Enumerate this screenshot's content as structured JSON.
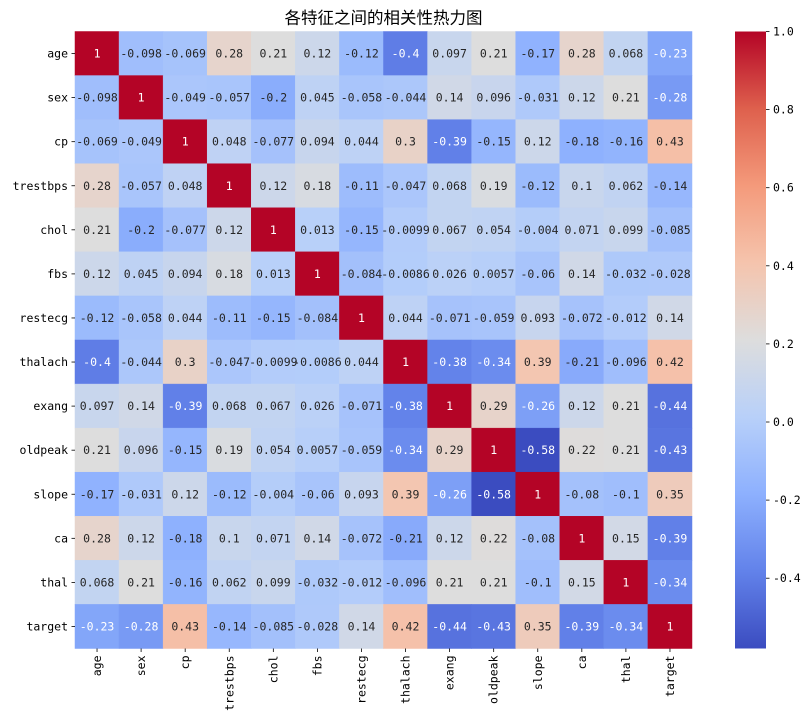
{
  "chart_data": {
    "type": "heatmap",
    "title": "各特征之间的相关性热力图",
    "row_labels": [
      "age",
      "sex",
      "cp",
      "trestbps",
      "chol",
      "fbs",
      "restecg",
      "thalach",
      "exang",
      "oldpeak",
      "slope",
      "ca",
      "thal",
      "target"
    ],
    "col_labels": [
      "age",
      "sex",
      "cp",
      "trestbps",
      "chol",
      "fbs",
      "restecg",
      "thalach",
      "exang",
      "oldpeak",
      "slope",
      "ca",
      "thal",
      "target"
    ],
    "matrix": [
      [
        1,
        -0.098,
        -0.069,
        0.28,
        0.21,
        0.12,
        -0.12,
        -0.4,
        0.097,
        0.21,
        -0.17,
        0.28,
        0.068,
        -0.23
      ],
      [
        -0.098,
        1,
        -0.049,
        -0.057,
        -0.2,
        0.045,
        -0.058,
        -0.044,
        0.14,
        0.096,
        -0.031,
        0.12,
        0.21,
        -0.28
      ],
      [
        -0.069,
        -0.049,
        1,
        0.048,
        -0.077,
        0.094,
        0.044,
        0.3,
        -0.39,
        -0.15,
        0.12,
        -0.18,
        -0.16,
        0.43
      ],
      [
        0.28,
        -0.057,
        0.048,
        1,
        0.12,
        0.18,
        -0.11,
        -0.047,
        0.068,
        0.19,
        -0.12,
        0.1,
        0.062,
        -0.14
      ],
      [
        0.21,
        -0.2,
        -0.077,
        0.12,
        1,
        0.013,
        -0.15,
        -0.0099,
        0.067,
        0.054,
        -0.004,
        0.071,
        0.099,
        -0.085
      ],
      [
        0.12,
        0.045,
        0.094,
        0.18,
        0.013,
        1,
        -0.084,
        -0.0086,
        0.026,
        0.0057,
        -0.06,
        0.14,
        -0.032,
        -0.028
      ],
      [
        -0.12,
        -0.058,
        0.044,
        -0.11,
        -0.15,
        -0.084,
        1,
        0.044,
        -0.071,
        -0.059,
        0.093,
        -0.072,
        -0.012,
        0.14
      ],
      [
        -0.4,
        -0.044,
        0.3,
        -0.047,
        -0.0099,
        -0.0086,
        0.044,
        1,
        -0.38,
        -0.34,
        0.39,
        -0.21,
        -0.096,
        0.42
      ],
      [
        0.097,
        0.14,
        -0.39,
        0.068,
        0.067,
        0.026,
        -0.071,
        -0.38,
        1,
        0.29,
        -0.26,
        0.12,
        0.21,
        -0.44
      ],
      [
        0.21,
        0.096,
        -0.15,
        0.19,
        0.054,
        0.0057,
        -0.059,
        -0.34,
        0.29,
        1,
        -0.58,
        0.22,
        0.21,
        -0.43
      ],
      [
        -0.17,
        -0.031,
        0.12,
        -0.12,
        -0.004,
        -0.06,
        0.093,
        0.39,
        -0.26,
        -0.58,
        1,
        -0.08,
        -0.1,
        0.35
      ],
      [
        0.28,
        0.12,
        -0.18,
        0.1,
        0.071,
        0.14,
        -0.072,
        -0.21,
        0.12,
        0.22,
        -0.08,
        1,
        0.15,
        -0.39
      ],
      [
        0.068,
        0.21,
        -0.16,
        0.062,
        0.099,
        -0.032,
        -0.012,
        -0.096,
        0.21,
        0.21,
        -0.1,
        0.15,
        1,
        -0.34
      ],
      [
        -0.23,
        -0.28,
        0.43,
        -0.14,
        -0.085,
        -0.028,
        0.14,
        0.42,
        -0.44,
        -0.43,
        0.35,
        -0.39,
        -0.34,
        1
      ]
    ],
    "vmin": -0.58,
    "vmax": 1.0,
    "colorbar": {
      "ticks": [
        {
          "value": 1.0,
          "label": "1.0"
        },
        {
          "value": 0.8,
          "label": "0.8"
        },
        {
          "value": 0.6,
          "label": "0.6"
        },
        {
          "value": 0.4,
          "label": "0.4"
        },
        {
          "value": 0.2,
          "label": "0.2"
        },
        {
          "value": 0.0,
          "label": "0.0"
        },
        {
          "value": -0.2,
          "label": "-0.2"
        },
        {
          "value": -0.4,
          "label": "-0.4"
        }
      ]
    }
  },
  "colors": {
    "colormap": [
      "#3b4cc0",
      "#6282ea",
      "#8db0fe",
      "#b8d0f9",
      "#dddddd",
      "#f5c4ad",
      "#f49a7b",
      "#de604d",
      "#b40426"
    ],
    "annotation_dark": "#262626",
    "annotation_light": "#ffffff"
  }
}
